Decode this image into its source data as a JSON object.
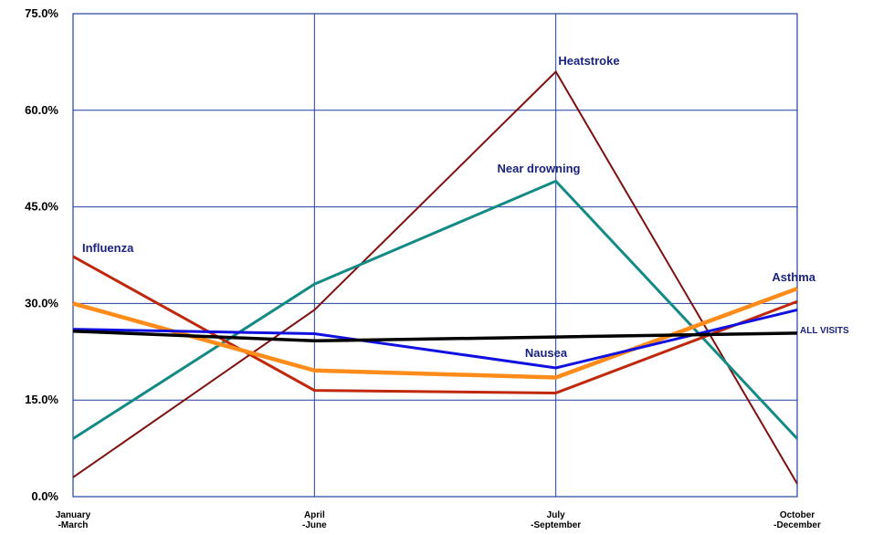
{
  "chart_data": {
    "type": "line",
    "title": "",
    "xlabel": "",
    "ylabel": "",
    "categories": [
      [
        "January",
        "-March"
      ],
      [
        "April",
        "-June"
      ],
      [
        "July",
        "-September"
      ],
      [
        "October",
        "-December"
      ]
    ],
    "y_ticks": [
      "0.0%",
      "15.0%",
      "30.0%",
      "45.0%",
      "60.0%",
      "75.0%"
    ],
    "ylim": [
      0,
      75
    ],
    "grid": true,
    "series": [
      {
        "name": "Heatstroke",
        "color": "#7f1010",
        "width": 2,
        "values": [
          3,
          29,
          66,
          2
        ]
      },
      {
        "name": "Near drowning",
        "color": "#138a84",
        "width": 3,
        "values": [
          9,
          33,
          49,
          9
        ]
      },
      {
        "name": "Influenza",
        "color": "#c0280c",
        "width": 3,
        "values": [
          37.3,
          16.5,
          16.1,
          30.3
        ]
      },
      {
        "name": "Asthma",
        "color": "#ff8c1a",
        "width": 4.5,
        "values": [
          30,
          19.6,
          18.5,
          32.3
        ]
      },
      {
        "name": "Nausea",
        "color": "#1010e0",
        "width": 3,
        "values": [
          26,
          25.3,
          20,
          29
        ]
      },
      {
        "name": "ALL VISITS",
        "color": "#000000",
        "width": 3.5,
        "values": [
          25.7,
          24.2,
          24.8,
          25.4
        ]
      }
    ]
  }
}
